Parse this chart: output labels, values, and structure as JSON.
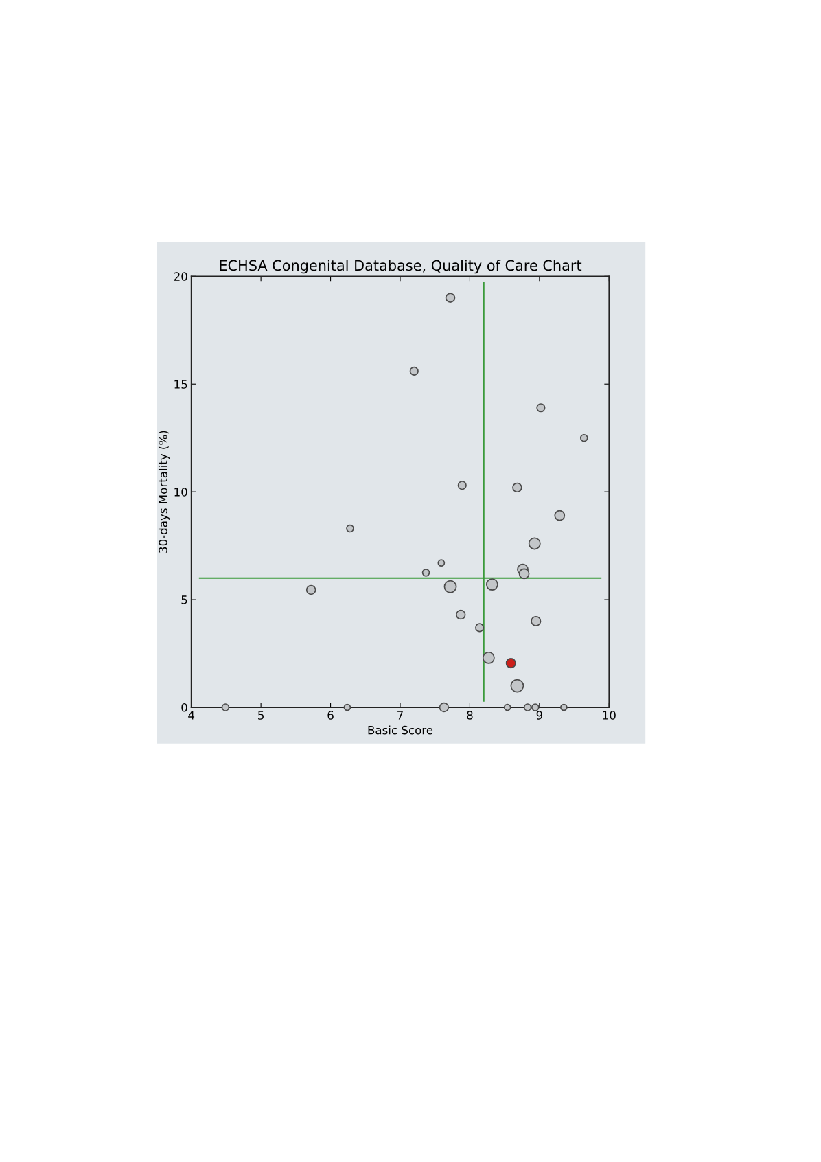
{
  "chart_data": {
    "type": "bubble",
    "title": "ECHSA Congenital Database, Quality of Care Chart",
    "xlabel": "Basic Score",
    "ylabel": "30-days Mortality (%)",
    "x": [
      7.72,
      7.2,
      9.02,
      9.64,
      7.89,
      8.68,
      9.29,
      6.28,
      8.93,
      7.59,
      7.37,
      8.76,
      8.78,
      5.72,
      7.72,
      8.32,
      7.87,
      8.95,
      8.14,
      8.27,
      8.59,
      8.68,
      4.49,
      6.24,
      7.63,
      8.54,
      8.83,
      8.94,
      9.35
    ],
    "values": [
      19.0,
      15.6,
      13.9,
      12.5,
      10.3,
      10.2,
      8.9,
      8.3,
      7.6,
      6.7,
      6.25,
      6.4,
      6.2,
      5.45,
      5.6,
      5.7,
      4.3,
      4.0,
      3.7,
      2.3,
      2.05,
      1.0,
      0,
      0,
      0,
      0,
      0,
      0,
      0
    ],
    "sizes": [
      0.5,
      0.4,
      0.4,
      0.3,
      0.4,
      0.5,
      0.6,
      0.3,
      0.8,
      0.25,
      0.3,
      0.7,
      0.6,
      0.5,
      0.9,
      0.8,
      0.5,
      0.55,
      0.4,
      0.8,
      0.55,
      1.0,
      0.3,
      0.25,
      0.5,
      0.25,
      0.3,
      0.3,
      0.25
    ],
    "colors": [
      "#c3c6c9",
      "#c3c6c9",
      "#c3c6c9",
      "#c3c6c9",
      "#c3c6c9",
      "#c3c6c9",
      "#c3c6c9",
      "#c3c6c9",
      "#c3c6c9",
      "#c3c6c9",
      "#c3c6c9",
      "#c3c6c9",
      "#c3c6c9",
      "#c3c6c9",
      "#c3c6c9",
      "#c3c6c9",
      "#c3c6c9",
      "#c3c6c9",
      "#c3c6c9",
      "#c3c6c9",
      "#cc1f1a",
      "#c3c6c9",
      "#c3c6c9",
      "#c3c6c9",
      "#c3c6c9",
      "#c3c6c9",
      "#c3c6c9",
      "#c3c6c9",
      "#c3c6c9"
    ],
    "xlim": [
      4,
      10
    ],
    "xticks": [
      4,
      5,
      6,
      7,
      8,
      9,
      10
    ],
    "ylim": [
      0,
      20
    ],
    "yticks": [
      0,
      5,
      10,
      15,
      20
    ],
    "ref_lines": [
      {
        "axis": "x",
        "value": 8.2,
        "color": "#3a9a3a"
      },
      {
        "axis": "y",
        "value": 6.0,
        "color": "#3a9a3a"
      }
    ],
    "marker": "circle",
    "grid": false,
    "legend": false
  }
}
